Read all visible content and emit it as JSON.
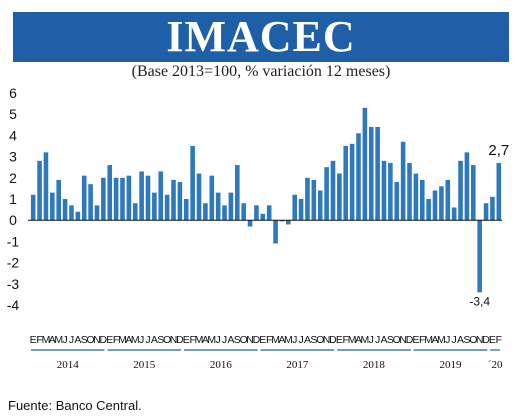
{
  "title": "IMACEC",
  "subtitle": "(Base 2013=100, % variación 12 meses)",
  "source": "Fuente: Banco Central.",
  "colors": {
    "banner": "#1f5fa8",
    "bar": "#2e78bd",
    "axis": "#111111"
  },
  "chart_data": {
    "type": "bar",
    "ylim": [
      -4,
      6
    ],
    "yticks": [
      "6",
      "5",
      "4",
      "3",
      "2",
      "1",
      "0",
      "-1",
      "-2",
      "-3",
      "-4"
    ],
    "grid": false,
    "month_letters": [
      "E",
      "F",
      "M",
      "A",
      "M",
      "J",
      "J",
      "A",
      "S",
      "O",
      "N",
      "D"
    ],
    "years": [
      {
        "label": "2014",
        "months": 12
      },
      {
        "label": "2015",
        "months": 12
      },
      {
        "label": "2016",
        "months": 12
      },
      {
        "label": "2017",
        "months": 12
      },
      {
        "label": "2018",
        "months": 12
      },
      {
        "label": "2019",
        "months": 12
      },
      {
        "label": "´20",
        "months": 2
      }
    ],
    "values": [
      1.2,
      2.8,
      3.2,
      1.3,
      1.9,
      1.0,
      0.7,
      0.4,
      2.1,
      1.7,
      0.7,
      2.0,
      2.6,
      2.0,
      2.0,
      2.1,
      0.8,
      2.3,
      2.1,
      1.3,
      2.3,
      1.2,
      1.9,
      1.8,
      1.0,
      3.5,
      2.2,
      0.8,
      2.1,
      1.3,
      0.7,
      1.3,
      2.6,
      0.8,
      -0.3,
      0.7,
      0.3,
      0.7,
      -1.1,
      0.0,
      -0.2,
      1.2,
      1.0,
      2.0,
      1.9,
      1.4,
      2.5,
      2.8,
      2.2,
      3.5,
      3.6,
      4.1,
      5.3,
      4.4,
      4.4,
      2.8,
      2.7,
      1.8,
      3.7,
      2.7,
      2.2,
      1.9,
      1.0,
      1.4,
      1.6,
      1.9,
      0.6,
      2.8,
      3.2,
      2.6,
      -3.4,
      0.8,
      1.1,
      2.7
    ],
    "data_labels": [
      {
        "index": 70,
        "text": "-3,4"
      },
      {
        "index": 73,
        "text": "2,7"
      }
    ]
  }
}
